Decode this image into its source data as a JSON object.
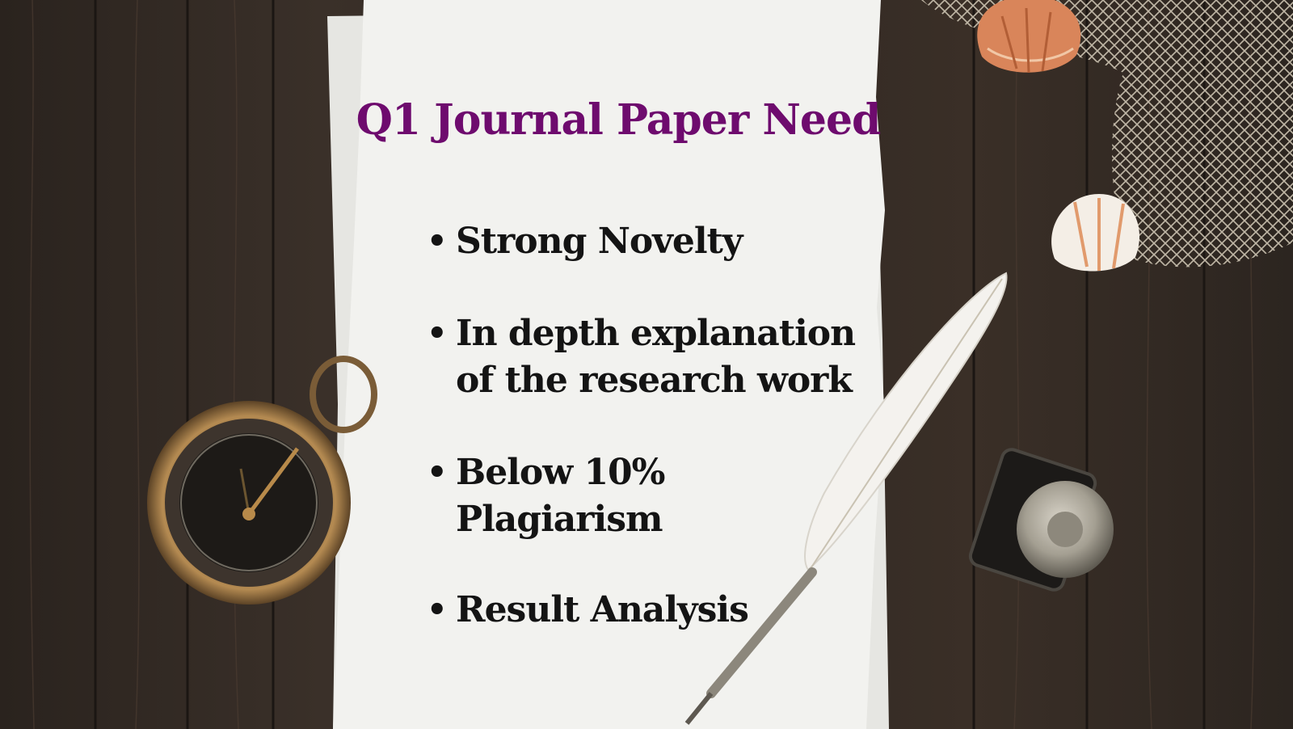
{
  "slide": {
    "title": "Q1 Journal Paper Need",
    "bullets": [
      "Strong Novelty",
      "In depth explanation of the research work",
      "Below 10% Plagiarism",
      "Result Analysis"
    ]
  },
  "colors": {
    "title": "#6e0b6e",
    "text": "#141414",
    "wood": "#2f2822",
    "paper": "#f2f2ef"
  }
}
